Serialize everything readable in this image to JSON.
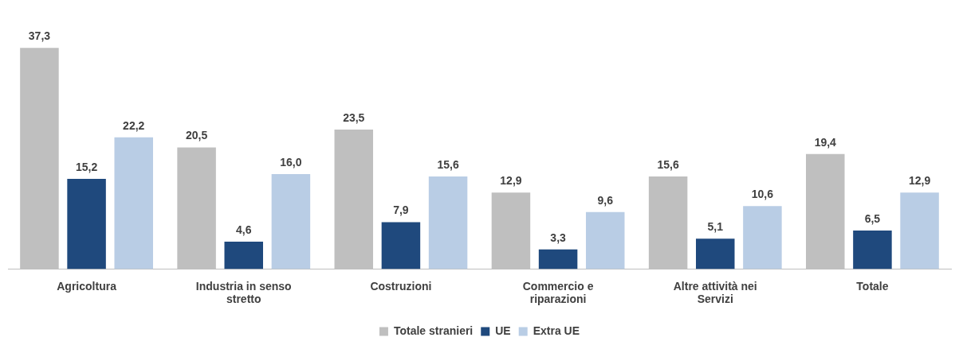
{
  "chart_data": {
    "type": "bar",
    "categories": [
      "Agricoltura",
      "Industria in senso stretto",
      "Costruzioni",
      "Commercio e riparazioni",
      "Altre attività nei Servizi",
      "Totale"
    ],
    "series": [
      {
        "name": "Totale stranieri",
        "color": "#bfbfbf",
        "values": [
          37.3,
          20.5,
          23.5,
          12.9,
          15.6,
          19.4
        ],
        "value_labels": [
          "37,3",
          "20,5",
          "23,5",
          "12,9",
          "15,6",
          "19,4"
        ]
      },
      {
        "name": "UE",
        "color": "#1f497d",
        "values": [
          15.2,
          4.6,
          7.9,
          3.3,
          5.1,
          6.5
        ],
        "value_labels": [
          "15,2",
          "4,6",
          "7,9",
          "3,3",
          "5,1",
          "6,5"
        ]
      },
      {
        "name": "Extra UE",
        "color": "#b9cde5",
        "values": [
          22.2,
          16.0,
          15.6,
          9.6,
          10.6,
          12.9
        ],
        "value_labels": [
          "22,2",
          "16,0",
          "15,6",
          "9,6",
          "10,6",
          "12,9"
        ]
      }
    ],
    "grid": false,
    "legend": "bottom"
  }
}
